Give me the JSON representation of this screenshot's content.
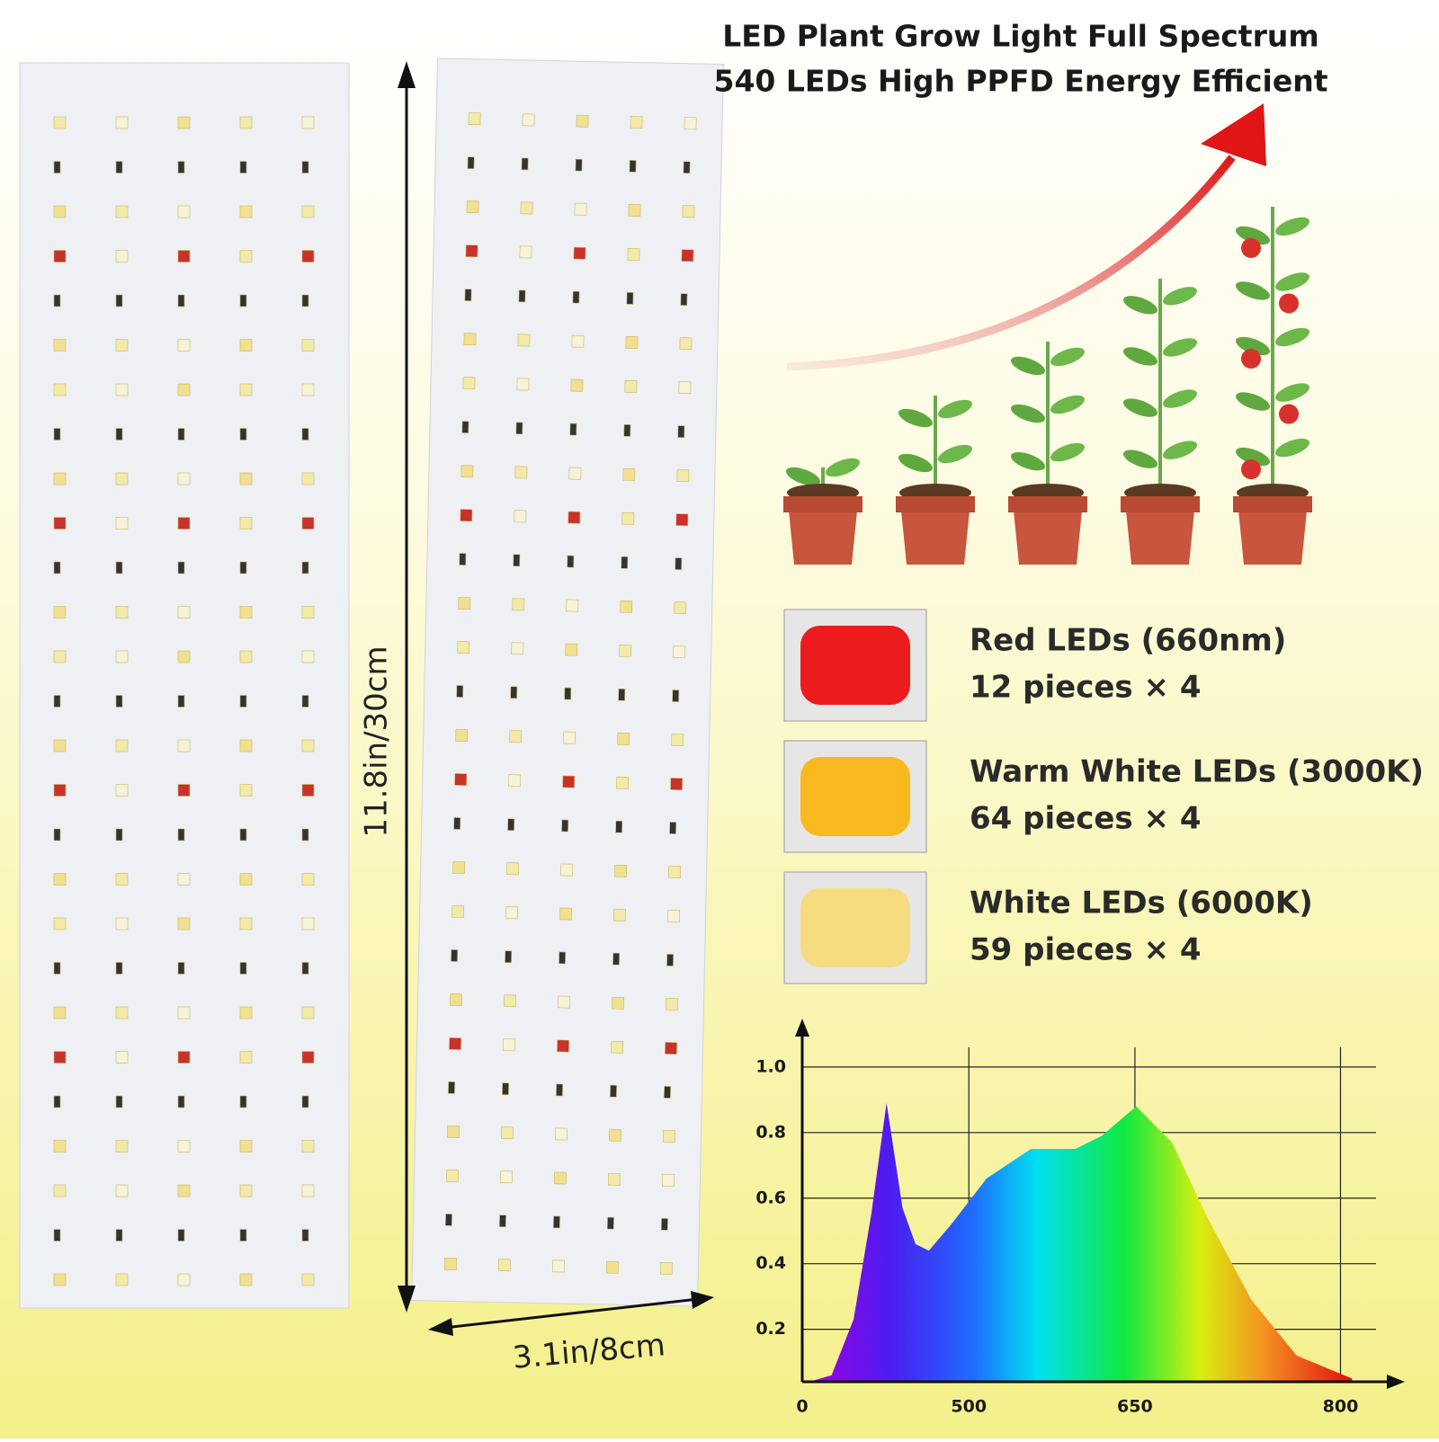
{
  "title": [
    "LED Plant Grow Light Full Spectrum",
    "540 LEDs High PPFD Energy Efficient"
  ],
  "dimensions": {
    "height": "11.8in/30cm",
    "width": "3.1in/8cm"
  },
  "leds": [
    {
      "name": "Red LEDs (660nm)",
      "count": "12 pieces × 4",
      "color": "#ec1c1e"
    },
    {
      "name": "Warm White LEDs (3000K)",
      "count": "64 pieces × 4",
      "color": "#f7b91e"
    },
    {
      "name": "White LEDs (6000K)",
      "count": "59 pieces × 4",
      "color": "#f6dc7e"
    }
  ],
  "chart_data": {
    "type": "area",
    "x": [
      21,
      88,
      154,
      207,
      253,
      301,
      340,
      380,
      447,
      516,
      556,
      596,
      620,
      651,
      677,
      703,
      735,
      768,
      813
    ],
    "values": [
      0.04,
      0.06,
      0.23,
      0.55,
      0.89,
      0.57,
      0.46,
      0.44,
      0.52,
      0.66,
      0.75,
      0.75,
      0.79,
      0.88,
      0.77,
      0.54,
      0.29,
      0.12,
      0.05
    ],
    "xlim": [
      0,
      830
    ],
    "ylim": [
      0.04,
      1.06
    ],
    "xticks": [
      0,
      500,
      650,
      800
    ],
    "yticks": [
      0.2,
      0.4,
      0.6,
      0.8,
      {
        "value": 1,
        "label": "1.0"
      }
    ],
    "grid": true
  }
}
